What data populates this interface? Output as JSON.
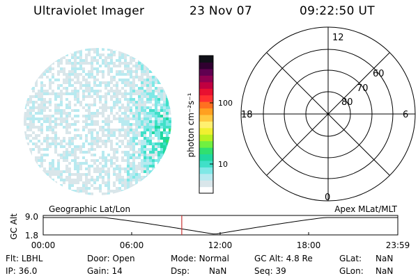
{
  "header": {
    "title": "Ultraviolet Imager",
    "date": "23 Nov 07",
    "time": "09:22:50 UT"
  },
  "colorbar": {
    "label": "photon cm⁻²s⁻¹",
    "ticks": [
      "100",
      "10"
    ],
    "colors": [
      "#ffffff",
      "#d9e6ea",
      "#b8eaf0",
      "#7fe8e6",
      "#40e0c8",
      "#20d8a0",
      "#30e070",
      "#70f040",
      "#b8f020",
      "#f0f030",
      "#fff070",
      "#ffc840",
      "#ffa020",
      "#ff7020",
      "#ff3030",
      "#e81030",
      "#c00040",
      "#900050",
      "#600050",
      "#300030",
      "#101018"
    ]
  },
  "polar": {
    "hours": [
      "12",
      "18",
      "6",
      "0"
    ],
    "lats": [
      "60",
      "70",
      "80"
    ]
  },
  "timeline": {
    "left_label": "Geographic Lat/Lon",
    "right_label": "Apex MLat/MLT",
    "y_axis_label": "GC Alt",
    "y_ticks": [
      "9.0",
      "1.8"
    ],
    "x_ticks": [
      "00:00",
      "06:00",
      "12:00",
      "18:00",
      "23:59"
    ],
    "marker_color": "#c83232",
    "marker_time_hours": 9.38
  },
  "info": {
    "row1": [
      {
        "label": "Flt:",
        "value": "LBHL"
      },
      {
        "label": "Door:",
        "value": "Open"
      },
      {
        "label": "Mode:",
        "value": "Normal"
      },
      {
        "label": "GC Alt:",
        "value": "4.8 Re"
      },
      {
        "label": "GLat:",
        "value": "NaN"
      }
    ],
    "row2": [
      {
        "label": "IP:",
        "value": "36.0"
      },
      {
        "label": "Gain:",
        "value": "14"
      },
      {
        "label": "Dsp:",
        "value": "NaN"
      },
      {
        "label": "Seq:",
        "value": "39"
      },
      {
        "label": "GLon:",
        "value": "NaN"
      }
    ]
  }
}
